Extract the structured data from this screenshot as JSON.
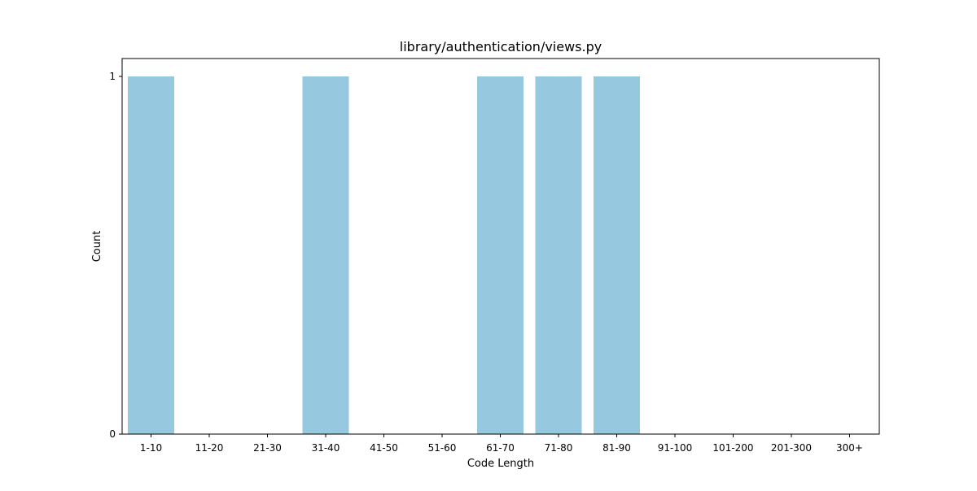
{
  "chart_data": {
    "type": "bar",
    "title": "library/authentication/views.py",
    "xlabel": "Code Length",
    "ylabel": "Count",
    "categories": [
      "1-10",
      "11-20",
      "21-30",
      "31-40",
      "41-50",
      "51-60",
      "61-70",
      "71-80",
      "81-90",
      "91-100",
      "101-200",
      "201-300",
      "300+"
    ],
    "values": [
      1,
      0,
      0,
      1,
      0,
      0,
      1,
      1,
      1,
      0,
      0,
      0,
      0
    ],
    "ylim": [
      0,
      1.05
    ],
    "yticks": [
      {
        "value": 0,
        "label": "0"
      },
      {
        "value": 1,
        "label": "1"
      }
    ],
    "grid": false,
    "legend": "none",
    "bar_color": "#96c9df"
  }
}
